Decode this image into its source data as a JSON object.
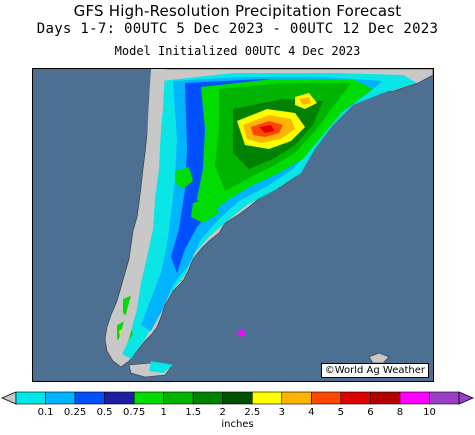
{
  "header": {
    "title": "GFS High-Resolution Precipitation Forecast",
    "period": "Days 1-7: 00UTC 5 Dec 2023 - 00UTC 12 Dec 2023",
    "init": "Model Initialized 00UTC 4 Dec 2023"
  },
  "map": {
    "credit": "©World Ag Weather",
    "ocean_color": "#4d6f92",
    "land_color": "#c8c8c8"
  },
  "colorbar": {
    "units": "inches",
    "ticks": [
      "0.1",
      "0.25",
      "0.5",
      "0.75",
      "1",
      "1.5",
      "2",
      "2.5",
      "3",
      "4",
      "5",
      "6",
      "8",
      "10"
    ],
    "colors": [
      "#00e8e8",
      "#00b4ff",
      "#0050ff",
      "#1e1ea0",
      "#00dc00",
      "#00b400",
      "#008200",
      "#005000",
      "#ffff00",
      "#ffb400",
      "#ff4600",
      "#e10000",
      "#b40000",
      "#ff00ff",
      "#9a40c8"
    ]
  }
}
